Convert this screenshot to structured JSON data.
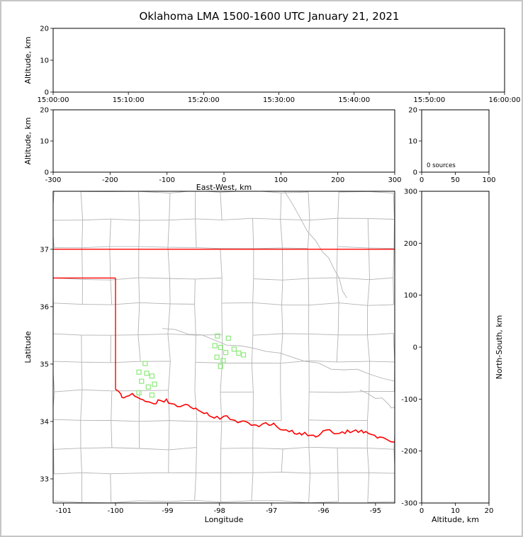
{
  "title": "Oklahoma LMA 1500-1600 UTC January 21, 2021",
  "colors": {
    "background": "#ffffff",
    "frame_border": "#c6c6c6",
    "axis": "#000000",
    "county_line": "#b3b3b3",
    "state_line": "#ff0000",
    "station_marker": "#8ce97a",
    "text": "#000000"
  },
  "chart_data": [
    {
      "id": "time_height",
      "type": "scatter",
      "xlabel": "",
      "ylabel": "Altitude, km",
      "xlim": [
        0,
        6
      ],
      "ylim": [
        0,
        20
      ],
      "xticks": [
        0,
        1,
        2,
        3,
        4,
        5,
        6
      ],
      "xticklabels": [
        "15:00:00",
        "15:10:00",
        "15:20:00",
        "15:30:00",
        "15:40:00",
        "15:50:00",
        "16:00:00"
      ],
      "yticks": [
        0,
        10,
        20
      ],
      "points": []
    },
    {
      "id": "ew_height",
      "type": "scatter",
      "xlabel": "East-West, km",
      "ylabel": "Altitude, km",
      "xlim": [
        -300,
        300
      ],
      "ylim": [
        0,
        20
      ],
      "xticks": [
        -300,
        -200,
        -100,
        0,
        100,
        200,
        300
      ],
      "yticks": [
        0,
        10,
        20
      ],
      "points": []
    },
    {
      "id": "alt_histogram",
      "type": "line",
      "annotation": "0 sources",
      "xlim": [
        0,
        100
      ],
      "ylim": [
        0,
        20
      ],
      "xticks": [
        0,
        50,
        100
      ],
      "yticks": [
        0,
        10,
        20
      ],
      "points": []
    },
    {
      "id": "map",
      "type": "scatter",
      "xlabel": "Longitude",
      "ylabel": "Latitude",
      "xlim": [
        -101.2,
        -94.63
      ],
      "ylim": [
        32.58,
        38.01
      ],
      "xticks": [
        -101,
        -100,
        -99,
        -98,
        -97,
        -96,
        -95
      ],
      "yticks": [
        33,
        34,
        35,
        36,
        37
      ],
      "points": [],
      "stations": [
        [
          -98.04,
          35.49
        ],
        [
          -97.83,
          35.45
        ],
        [
          -98.09,
          35.32
        ],
        [
          -97.98,
          35.29
        ],
        [
          -97.72,
          35.26
        ],
        [
          -97.88,
          35.2
        ],
        [
          -98.05,
          35.12
        ],
        [
          -97.93,
          35.06
        ],
        [
          -97.63,
          35.19
        ],
        [
          -97.54,
          35.16
        ],
        [
          -97.98,
          34.96
        ],
        [
          -99.43,
          35.01
        ],
        [
          -99.55,
          34.86
        ],
        [
          -99.4,
          34.84
        ],
        [
          -99.3,
          34.79
        ],
        [
          -99.5,
          34.7
        ],
        [
          -99.37,
          34.6
        ],
        [
          -99.25,
          34.65
        ],
        [
          -99.55,
          34.5
        ],
        [
          -99.3,
          34.46
        ]
      ],
      "state_borders": {
        "kansas_border": [
          [
            -101.2,
            37.0
          ],
          [
            -94.63,
            37.0
          ]
        ],
        "panhandle_border": [
          [
            -101.2,
            36.5
          ],
          [
            -100.0,
            36.5
          ]
        ],
        "meridian_100": [
          [
            -100.0,
            36.5
          ],
          [
            -100.0,
            34.56
          ]
        ],
        "red_river": [
          [
            -100.0,
            34.56
          ],
          [
            -99.9,
            34.48
          ],
          [
            -99.84,
            34.41
          ],
          [
            -99.74,
            34.45
          ],
          [
            -99.63,
            34.44
          ],
          [
            -99.52,
            34.39
          ],
          [
            -99.43,
            34.35
          ],
          [
            -99.32,
            34.33
          ],
          [
            -99.22,
            34.31
          ],
          [
            -99.12,
            34.36
          ],
          [
            -99.02,
            34.39
          ],
          [
            -98.92,
            34.31
          ],
          [
            -98.81,
            34.26
          ],
          [
            -98.7,
            34.28
          ],
          [
            -98.61,
            34.29
          ],
          [
            -98.5,
            34.22
          ],
          [
            -98.4,
            34.19
          ],
          [
            -98.3,
            34.14
          ],
          [
            -98.2,
            34.1
          ],
          [
            -98.1,
            34.06
          ],
          [
            -97.99,
            34.04
          ],
          [
            -97.86,
            34.1
          ],
          [
            -97.75,
            34.03
          ],
          [
            -97.65,
            33.98
          ],
          [
            -97.55,
            34.01
          ],
          [
            -97.45,
            33.98
          ],
          [
            -97.34,
            33.94
          ],
          [
            -97.24,
            33.91
          ],
          [
            -97.11,
            33.98
          ],
          [
            -97.0,
            33.94
          ],
          [
            -96.9,
            33.91
          ],
          [
            -96.77,
            33.85
          ],
          [
            -96.66,
            33.82
          ],
          [
            -96.56,
            33.79
          ],
          [
            -96.46,
            33.8
          ],
          [
            -96.36,
            33.81
          ],
          [
            -96.25,
            33.76
          ],
          [
            -96.15,
            33.73
          ],
          [
            -96.05,
            33.79
          ],
          [
            -95.95,
            33.85
          ],
          [
            -95.84,
            33.82
          ],
          [
            -95.74,
            33.79
          ],
          [
            -95.64,
            33.82
          ],
          [
            -95.54,
            33.85
          ],
          [
            -95.43,
            33.83
          ],
          [
            -95.33,
            33.81
          ],
          [
            -95.23,
            33.8
          ],
          [
            -95.13,
            33.79
          ],
          [
            -95.02,
            33.76
          ],
          [
            -94.92,
            33.73
          ],
          [
            -94.79,
            33.69
          ],
          [
            -94.63,
            33.64
          ]
        ]
      },
      "gray_rivers": [
        [
          [
            -96.75,
            38.01
          ],
          [
            -96.45,
            37.55
          ],
          [
            -96.15,
            37.15
          ],
          [
            -95.9,
            36.85
          ],
          [
            -95.7,
            36.5
          ],
          [
            -95.55,
            36.15
          ]
        ],
        [
          [
            -99.1,
            35.62
          ],
          [
            -98.6,
            35.52
          ],
          [
            -98.1,
            35.42
          ],
          [
            -97.6,
            35.32
          ],
          [
            -97.1,
            35.22
          ],
          [
            -96.6,
            35.12
          ],
          [
            -96.1,
            35.02
          ],
          [
            -95.6,
            34.9
          ],
          [
            -95.1,
            34.82
          ],
          [
            -94.63,
            34.7
          ]
        ],
        [
          [
            -95.3,
            34.55
          ],
          [
            -95.0,
            34.4
          ],
          [
            -94.75,
            34.3
          ],
          [
            -94.63,
            34.25
          ]
        ]
      ],
      "county_grid": {
        "lon_step": 0.5475,
        "lat_step": 0.4936,
        "jitter": 0.05,
        "base_jitter": 0.12,
        "skip_fraction": 0.1,
        "seed": 11
      }
    },
    {
      "id": "ns_height",
      "type": "scatter",
      "xlabel": "Altitude, km",
      "ylabel": "North-South, km",
      "ylabel_side": "right",
      "xlim": [
        0,
        20
      ],
      "ylim": [
        -300,
        300
      ],
      "xticks": [
        0,
        10,
        20
      ],
      "yticks": [
        -300,
        -200,
        -100,
        0,
        100,
        200,
        300
      ],
      "points": []
    }
  ]
}
